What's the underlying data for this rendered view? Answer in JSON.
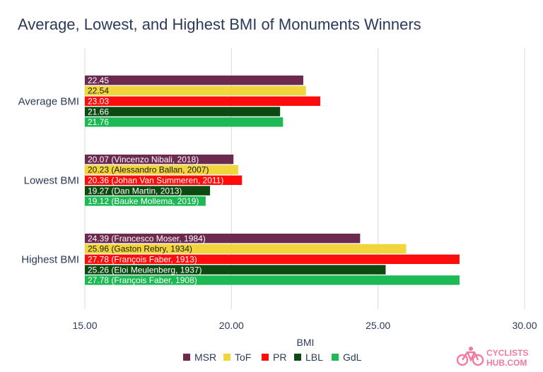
{
  "chart_data": {
    "type": "bar",
    "orientation": "horizontal",
    "title": "Average, Lowest, and Highest BMI of Monuments Winners",
    "xlabel": "BMI",
    "ylabel": "",
    "xlim": [
      15,
      30
    ],
    "x_ticks": [
      "15.00",
      "20.00",
      "25.00",
      "30.00"
    ],
    "grid": true,
    "legend_position": "bottom",
    "categories": [
      "Average BMI",
      "Lowest BMI",
      "Highest BMI"
    ],
    "series": [
      {
        "name": "MSR",
        "color": "#6b2a4e",
        "label_color": "#ffffff",
        "values": [
          22.45,
          20.07,
          24.39
        ],
        "labels": [
          "22.45",
          "20.07 (Vincenzo Nibali, 2018)",
          "24.39 (Francesco Moser, 1984)"
        ]
      },
      {
        "name": "ToF",
        "color": "#f0d53b",
        "label_color": "#1a1a1a",
        "values": [
          22.54,
          20.23,
          25.96
        ],
        "labels": [
          "22.54",
          "20.23 (Alessandro Ballan, 2007)",
          "25.96 (Gaston Rebry, 1934)"
        ]
      },
      {
        "name": "PR",
        "color": "#ff0d0d",
        "label_color": "#ffffff",
        "values": [
          23.03,
          20.36,
          27.78
        ],
        "labels": [
          "23.03",
          "20.36 (Johan Van Summeren, 2011)",
          "27.78 (François Faber, 1913)"
        ]
      },
      {
        "name": "LBL",
        "color": "#0c4a12",
        "label_color": "#ffffff",
        "values": [
          21.66,
          19.27,
          25.26
        ],
        "labels": [
          "21.66",
          "19.27 (Dan Martin, 2013)",
          "25.26 (Eloi Meulenberg, 1937)"
        ]
      },
      {
        "name": "GdL",
        "color": "#1db954",
        "label_color": "#ffffff",
        "values": [
          21.76,
          19.12,
          27.78
        ],
        "labels": [
          "21.76",
          "19.12 (Bauke Mollema, 2019)",
          "27.78 (François Faber, 1908)"
        ]
      }
    ]
  },
  "logo": {
    "text_top": "CYCLISTS",
    "text_bottom": "HUB.COM",
    "color": "#f07aa0"
  }
}
